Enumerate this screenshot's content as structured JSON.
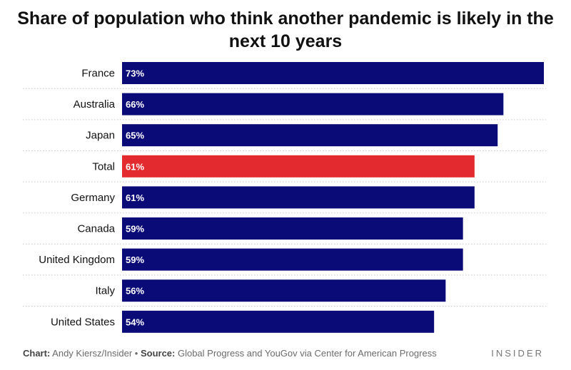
{
  "chart_data": {
    "type": "bar",
    "orientation": "horizontal",
    "title": "Share of population who think another pandemic is likely in the next 10 years",
    "categories": [
      "France",
      "Australia",
      "Japan",
      "Total",
      "Germany",
      "Canada",
      "United Kingdom",
      "Italy",
      "United States"
    ],
    "values": [
      73,
      66,
      65,
      61,
      61,
      59,
      59,
      56,
      54
    ],
    "value_labels": [
      "73%",
      "66%",
      "65%",
      "61%",
      "61%",
      "59%",
      "59%",
      "56%",
      "54%"
    ],
    "unit": "%",
    "highlight_category": "Total",
    "colors": {
      "bar": "#0b0b78",
      "highlight": "#e32a2e",
      "label": "#ffffff"
    },
    "xlim": [
      0,
      73
    ],
    "grid": false
  },
  "footer": {
    "chart_label": "Chart:",
    "chart_credit": " Andy Kiersz/Insider • ",
    "source_label": "Source:",
    "source_text": " Global Progress and YouGov via Center for American Progress"
  },
  "brand": "INSIDER"
}
